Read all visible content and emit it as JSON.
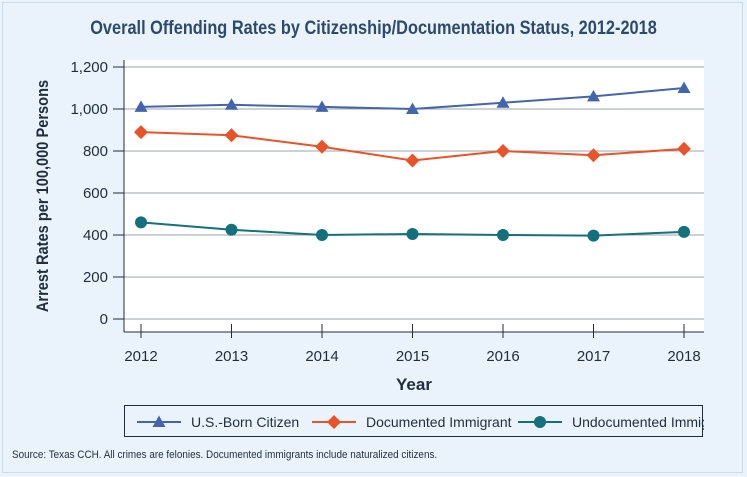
{
  "chart_data": {
    "type": "line",
    "title": "Overall Offending Rates by Citizenship/Documentation Status, 2012-2018",
    "xlabel": "Year",
    "ylabel": "Arrest Rates per 100,000 Persons",
    "x": [
      "2012",
      "2013",
      "2014",
      "2015",
      "2016",
      "2017",
      "2018"
    ],
    "ylim": [
      0,
      1200
    ],
    "yticks": [
      0,
      200,
      400,
      600,
      800,
      1000,
      1200
    ],
    "ytick_labels": [
      "0",
      "200",
      "400",
      "600",
      "800",
      "1,000",
      "1,200"
    ],
    "grid": true,
    "legend_position": "bottom",
    "series": [
      {
        "name": "U.S.-Born Citizen",
        "marker": "triangle",
        "color": "#4465ac",
        "values": [
          1010,
          1020,
          1010,
          1000,
          1030,
          1060,
          1100
        ]
      },
      {
        "name": "Documented Immigrant",
        "marker": "diamond",
        "color": "#e8542a",
        "values": [
          890,
          875,
          820,
          755,
          800,
          780,
          810
        ]
      },
      {
        "name": "Undocumented Immigrant",
        "marker": "circle",
        "color": "#15707e",
        "values": [
          460,
          425,
          400,
          405,
          400,
          397,
          415
        ]
      }
    ]
  },
  "source": "Source: Texas CCH. All crimes are felonies. Documented immigrants include naturalized citizens."
}
